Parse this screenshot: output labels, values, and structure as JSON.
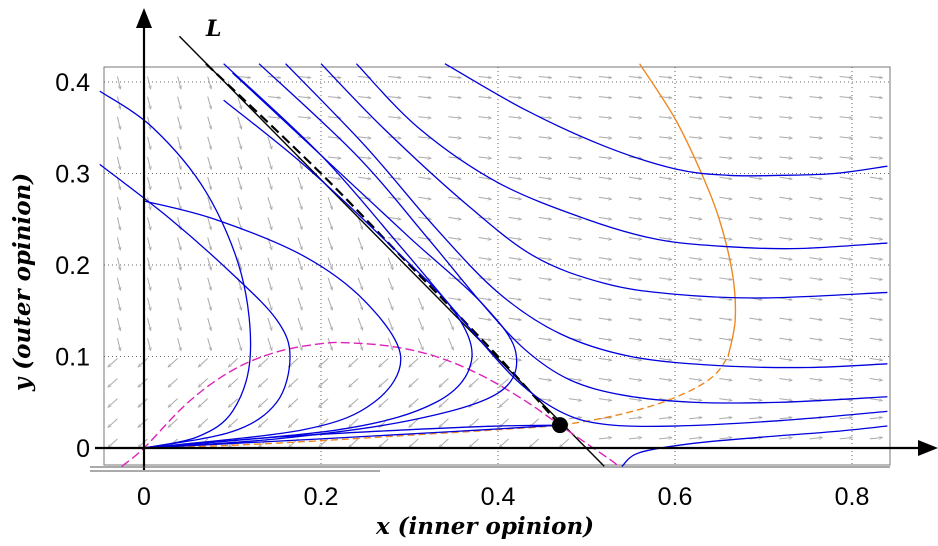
{
  "chart_data": {
    "type": "line",
    "title": "",
    "xlabel": "x (inner opinion)",
    "ylabel": "y (outer opinion)",
    "xlim": [
      -0.05,
      0.84
    ],
    "ylim": [
      -0.02,
      0.42
    ],
    "xticks": [
      "0",
      "0.2",
      "0.4",
      "0.6",
      "0.8"
    ],
    "xtick_values": [
      0,
      0.2,
      0.4,
      0.6,
      0.8
    ],
    "yticks": [
      "0",
      "0.1",
      "0.2",
      "0.3",
      "0.4"
    ],
    "ytick_values": [
      0,
      0.1,
      0.2,
      0.3,
      0.4
    ],
    "grid": true,
    "annotations": [
      {
        "text": "L"
      }
    ],
    "fixed_point": {
      "x": 0.47,
      "y": 0.025
    },
    "colors": {
      "trajectory": "#0000dd",
      "nullcline_orange": "#ee8822",
      "nullcline_magenta": "#dd22bb",
      "separatrix": "#000000",
      "vector_field": "#aaaaaa"
    },
    "series": [
      {
        "style": "separatrix-line",
        "points": [
          [
            0.04,
            0.45
          ],
          [
            0.52,
            -0.02
          ]
        ]
      },
      {
        "style": "separatrix-dashed",
        "points": [
          [
            0.07,
            0.42
          ],
          [
            0.2,
            0.3
          ],
          [
            0.3,
            0.2
          ],
          [
            0.4,
            0.1
          ],
          [
            0.47,
            0.025
          ]
        ]
      },
      {
        "style": "magenta-nullcline",
        "points": [
          [
            -0.025,
            -0.02
          ],
          [
            0,
            0
          ],
          [
            0.05,
            0.05
          ],
          [
            0.1,
            0.085
          ],
          [
            0.15,
            0.105
          ],
          [
            0.2,
            0.114
          ],
          [
            0.23,
            0.115
          ],
          [
            0.28,
            0.111
          ],
          [
            0.33,
            0.1
          ],
          [
            0.38,
            0.08
          ],
          [
            0.43,
            0.052
          ],
          [
            0.47,
            0.025
          ],
          [
            0.5,
            0.005
          ],
          [
            0.53,
            -0.015
          ],
          [
            0.535,
            -0.02
          ]
        ]
      },
      {
        "style": "orange-nullcline-dashed",
        "points": [
          [
            0,
            0
          ],
          [
            0.1,
            0.003
          ],
          [
            0.2,
            0.008
          ],
          [
            0.3,
            0.014
          ],
          [
            0.4,
            0.02
          ],
          [
            0.47,
            0.025
          ],
          [
            0.53,
            0.035
          ],
          [
            0.58,
            0.048
          ],
          [
            0.62,
            0.064
          ],
          [
            0.645,
            0.08
          ],
          [
            0.66,
            0.1
          ]
        ]
      },
      {
        "style": "orange-nullcline",
        "points": [
          [
            0.66,
            0.1
          ],
          [
            0.668,
            0.14
          ],
          [
            0.665,
            0.19
          ],
          [
            0.65,
            0.25
          ],
          [
            0.63,
            0.3
          ],
          [
            0.6,
            0.36
          ],
          [
            0.56,
            0.42
          ]
        ]
      },
      {
        "style": "trajectory",
        "points": [
          [
            0.34,
            0.42
          ],
          [
            0.43,
            0.37
          ],
          [
            0.52,
            0.33
          ],
          [
            0.6,
            0.305
          ],
          [
            0.66,
            0.298
          ],
          [
            0.72,
            0.298
          ],
          [
            0.78,
            0.3
          ],
          [
            0.84,
            0.308
          ]
        ]
      },
      {
        "style": "trajectory",
        "points": [
          [
            0.24,
            0.42
          ],
          [
            0.31,
            0.35
          ],
          [
            0.4,
            0.29
          ],
          [
            0.5,
            0.25
          ],
          [
            0.58,
            0.228
          ],
          [
            0.66,
            0.22
          ],
          [
            0.74,
            0.218
          ],
          [
            0.84,
            0.224
          ]
        ]
      },
      {
        "style": "trajectory",
        "points": [
          [
            0.2,
            0.42
          ],
          [
            0.27,
            0.35
          ],
          [
            0.36,
            0.27
          ],
          [
            0.44,
            0.21
          ],
          [
            0.52,
            0.18
          ],
          [
            0.6,
            0.168
          ],
          [
            0.7,
            0.164
          ],
          [
            0.84,
            0.17
          ]
        ]
      },
      {
        "style": "trajectory",
        "points": [
          [
            0.16,
            0.42
          ],
          [
            0.25,
            0.33
          ],
          [
            0.33,
            0.24
          ],
          [
            0.4,
            0.17
          ],
          [
            0.47,
            0.125
          ],
          [
            0.55,
            0.1
          ],
          [
            0.65,
            0.09
          ],
          [
            0.75,
            0.088
          ],
          [
            0.84,
            0.092
          ]
        ]
      },
      {
        "style": "trajectory",
        "points": [
          [
            0.13,
            0.42
          ],
          [
            0.24,
            0.32
          ],
          [
            0.32,
            0.23
          ],
          [
            0.38,
            0.16
          ],
          [
            0.43,
            0.108
          ],
          [
            0.48,
            0.075
          ],
          [
            0.54,
            0.058
          ],
          [
            0.62,
            0.05
          ],
          [
            0.72,
            0.05
          ],
          [
            0.84,
            0.056
          ]
        ]
      },
      {
        "style": "trajectory",
        "points": [
          [
            0.09,
            0.42
          ],
          [
            0.2,
            0.32
          ],
          [
            0.29,
            0.22
          ],
          [
            0.36,
            0.14
          ],
          [
            0.42,
            0.075
          ],
          [
            0.47,
            0.04
          ],
          [
            0.52,
            0.026
          ],
          [
            0.6,
            0.024
          ],
          [
            0.72,
            0.03
          ],
          [
            0.84,
            0.04
          ]
        ]
      },
      {
        "style": "trajectory",
        "points": [
          [
            -0.05,
            0.39
          ],
          [
            0.01,
            0.35
          ],
          [
            0.07,
            0.28
          ],
          [
            0.11,
            0.19
          ],
          [
            0.12,
            0.1
          ],
          [
            0.1,
            0.04
          ],
          [
            0.06,
            0.012
          ],
          [
            0,
            0
          ]
        ]
      },
      {
        "style": "trajectory",
        "points": [
          [
            -0.05,
            0.31
          ],
          [
            0.03,
            0.25
          ],
          [
            0.1,
            0.19
          ],
          [
            0.15,
            0.14
          ],
          [
            0.165,
            0.1
          ],
          [
            0.15,
            0.05
          ],
          [
            0.1,
            0.018
          ],
          [
            0,
            0
          ]
        ]
      },
      {
        "style": "trajectory",
        "points": [
          [
            0,
            0.27
          ],
          [
            0.08,
            0.25
          ],
          [
            0.18,
            0.21
          ],
          [
            0.25,
            0.16
          ],
          [
            0.29,
            0.1
          ],
          [
            0.26,
            0.05
          ],
          [
            0.18,
            0.02
          ],
          [
            0,
            0
          ]
        ]
      },
      {
        "style": "trajectory",
        "points": [
          [
            0.09,
            0.38
          ],
          [
            0.18,
            0.31
          ],
          [
            0.28,
            0.22
          ],
          [
            0.35,
            0.15
          ],
          [
            0.37,
            0.095
          ],
          [
            0.33,
            0.05
          ],
          [
            0.22,
            0.02
          ],
          [
            0,
            0
          ]
        ]
      },
      {
        "style": "trajectory",
        "points": [
          [
            0.1,
            0.41
          ],
          [
            0.2,
            0.32
          ],
          [
            0.3,
            0.23
          ],
          [
            0.38,
            0.16
          ],
          [
            0.42,
            0.105
          ],
          [
            0.4,
            0.06
          ],
          [
            0.3,
            0.03
          ],
          [
            0.15,
            0.01
          ],
          [
            0,
            0
          ]
        ]
      },
      {
        "style": "trajectory",
        "points": [
          [
            0,
            0
          ],
          [
            0.2,
            0.01
          ],
          [
            0.35,
            0.018
          ],
          [
            0.47,
            0.025
          ]
        ]
      },
      {
        "style": "trajectory",
        "points": [
          [
            0,
            0
          ],
          [
            0.15,
            0.012
          ],
          [
            0.3,
            0.02
          ],
          [
            0.4,
            0.024
          ],
          [
            0.47,
            0.025
          ]
        ]
      },
      {
        "style": "trajectory",
        "points": [
          [
            0.54,
            -0.02
          ],
          [
            0.56,
            -0.005
          ],
          [
            0.62,
            0.005
          ],
          [
            0.7,
            0.012
          ],
          [
            0.78,
            0.018
          ],
          [
            0.84,
            0.024
          ]
        ]
      }
    ]
  }
}
